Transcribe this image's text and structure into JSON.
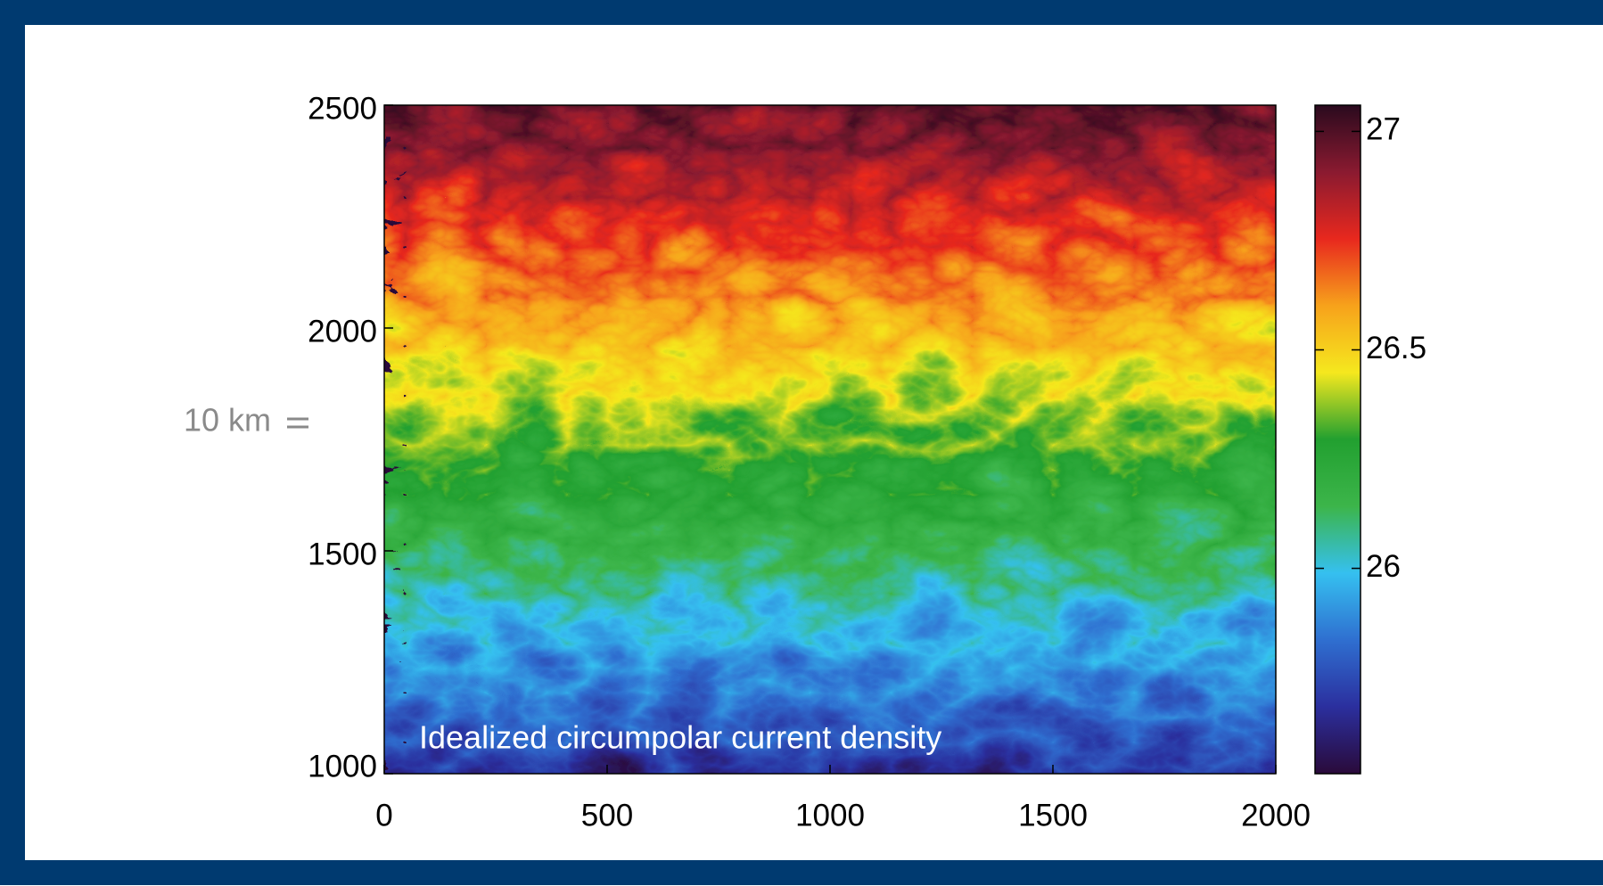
{
  "chart_data": {
    "type": "heatmap",
    "annotation": "Idealized circumpolar current density",
    "scale_label": "10 km",
    "xlim": [
      0,
      2000
    ],
    "xticks": [
      0,
      500,
      1000,
      1500,
      2000
    ],
    "ylim": [
      1000,
      2500
    ],
    "yticks": [
      1000,
      1500,
      2000,
      2500
    ],
    "colorbar": {
      "clim": [
        25.53,
        27.06
      ],
      "ticks": [
        26,
        26.5,
        27
      ],
      "colors": [
        "#2a0a3a",
        "#2b2f9e",
        "#2f6fd0",
        "#35c0f0",
        "#3cb54a",
        "#22a030",
        "#f5e81e",
        "#f7a21b",
        "#e8281e",
        "#8a1a30",
        "#2a0a1e"
      ]
    }
  }
}
